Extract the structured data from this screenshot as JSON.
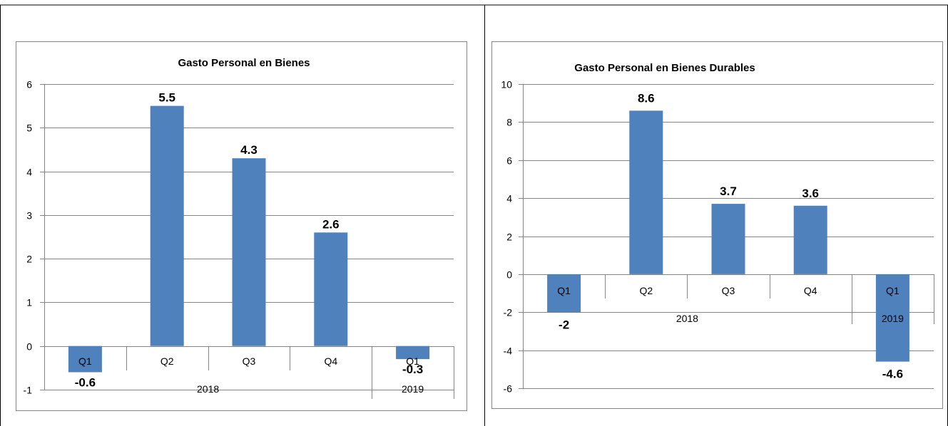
{
  "colors": {
    "bar": "#4f81bd",
    "grid": "#868686",
    "border": "#868686",
    "text": "#000000"
  },
  "chart_data": [
    {
      "type": "bar",
      "title": "Gasto Personal en Bienes",
      "categories": [
        "Q1",
        "Q2",
        "Q3",
        "Q4",
        "Q1"
      ],
      "groups": [
        {
          "label": "2018",
          "span": [
            0,
            3
          ]
        },
        {
          "label": "2019",
          "span": [
            4,
            4
          ]
        }
      ],
      "values": [
        -0.6,
        5.5,
        4.3,
        2.6,
        -0.3
      ],
      "data_labels": [
        "-0.6",
        "5.5",
        "4.3",
        "2.6",
        "-0.3"
      ],
      "ylim": [
        -1,
        6
      ],
      "yticks": [
        -1,
        0,
        1,
        2,
        3,
        4,
        5,
        6
      ],
      "xlabel": "",
      "ylabel": "",
      "grid": true,
      "legend": "none"
    },
    {
      "type": "bar",
      "title": "Gasto Personal en Bienes Durables",
      "categories": [
        "Q1",
        "Q2",
        "Q3",
        "Q4",
        "Q1"
      ],
      "groups": [
        {
          "label": "2018",
          "span": [
            0,
            3
          ]
        },
        {
          "label": "2019",
          "span": [
            4,
            4
          ]
        }
      ],
      "values": [
        -2,
        8.6,
        3.7,
        3.6,
        -4.6
      ],
      "data_labels": [
        "-2",
        "8.6",
        "3.7",
        "3.6",
        "-4.6"
      ],
      "ylim": [
        -6,
        10
      ],
      "yticks": [
        -6,
        -4,
        -2,
        0,
        2,
        4,
        6,
        8,
        10
      ],
      "xlabel": "",
      "ylabel": "",
      "grid": true,
      "legend": "none"
    }
  ]
}
